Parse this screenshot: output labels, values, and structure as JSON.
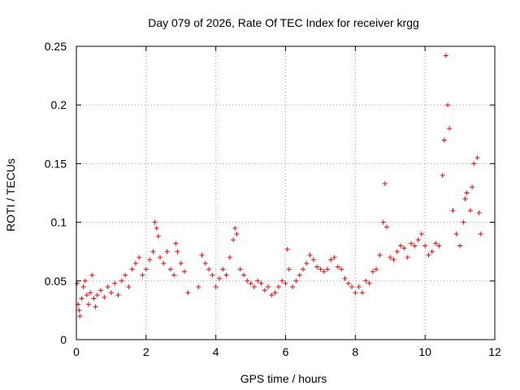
{
  "chart_data": {
    "type": "scatter",
    "title": "Day 079 of 2026, Rate Of TEC Index for receiver krgg",
    "xlabel": "GPS time / hours",
    "ylabel": "ROTI / TECUs",
    "xlim": [
      0,
      12
    ],
    "ylim": [
      0,
      0.25
    ],
    "xticks": [
      0,
      2,
      4,
      6,
      8,
      10,
      12
    ],
    "xtick_labels": [
      "0",
      "2",
      "4",
      "6",
      "8",
      "10",
      "12"
    ],
    "yticks": [
      0,
      0.05,
      0.1,
      0.15,
      0.2,
      0.25
    ],
    "ytick_labels": [
      "0",
      "0.05",
      "0.1",
      "0.15",
      "0.2",
      "0.25"
    ],
    "grid": true,
    "marker": "+",
    "color": "#ff0000",
    "series": [
      {
        "name": "ROTI",
        "x": [
          0.02,
          0.05,
          0.08,
          0.1,
          0.15,
          0.2,
          0.25,
          0.3,
          0.35,
          0.4,
          0.45,
          0.5,
          0.55,
          0.6,
          0.7,
          0.8,
          0.9,
          1.0,
          1.1,
          1.2,
          1.3,
          1.4,
          1.5,
          1.6,
          1.7,
          1.8,
          1.9,
          2.0,
          2.1,
          2.2,
          2.25,
          2.3,
          2.35,
          2.4,
          2.5,
          2.6,
          2.7,
          2.8,
          2.85,
          2.9,
          3.0,
          3.1,
          3.2,
          3.5,
          3.6,
          3.7,
          3.8,
          3.9,
          4.0,
          4.1,
          4.2,
          4.3,
          4.4,
          4.5,
          4.55,
          4.6,
          4.7,
          4.8,
          4.9,
          5.0,
          5.1,
          5.2,
          5.3,
          5.4,
          5.5,
          5.6,
          5.7,
          5.8,
          5.9,
          6.0,
          6.05,
          6.1,
          6.2,
          6.3,
          6.4,
          6.5,
          6.6,
          6.7,
          6.8,
          6.9,
          7.0,
          7.1,
          7.2,
          7.3,
          7.4,
          7.5,
          7.6,
          7.7,
          7.8,
          7.9,
          8.0,
          8.1,
          8.2,
          8.3,
          8.4,
          8.5,
          8.6,
          8.7,
          8.8,
          8.85,
          8.9,
          9.0,
          9.1,
          9.2,
          9.3,
          9.4,
          9.5,
          9.6,
          9.7,
          9.8,
          9.9,
          10.0,
          10.1,
          10.2,
          10.3,
          10.4,
          10.5,
          10.55,
          10.6,
          10.65,
          10.7,
          10.8,
          10.9,
          11.0,
          11.1,
          11.15,
          11.2,
          11.3,
          11.35,
          11.4,
          11.5,
          11.55,
          11.6
        ],
        "y": [
          0.048,
          0.03,
          0.025,
          0.02,
          0.035,
          0.045,
          0.05,
          0.038,
          0.03,
          0.04,
          0.055,
          0.035,
          0.028,
          0.038,
          0.042,
          0.036,
          0.045,
          0.04,
          0.048,
          0.038,
          0.05,
          0.055,
          0.045,
          0.06,
          0.065,
          0.07,
          0.055,
          0.06,
          0.068,
          0.075,
          0.1,
          0.095,
          0.088,
          0.07,
          0.065,
          0.075,
          0.06,
          0.055,
          0.082,
          0.075,
          0.065,
          0.058,
          0.04,
          0.045,
          0.072,
          0.065,
          0.06,
          0.055,
          0.045,
          0.052,
          0.06,
          0.055,
          0.07,
          0.085,
          0.095,
          0.09,
          0.06,
          0.055,
          0.05,
          0.048,
          0.045,
          0.05,
          0.048,
          0.042,
          0.045,
          0.038,
          0.04,
          0.045,
          0.05,
          0.048,
          0.077,
          0.06,
          0.045,
          0.05,
          0.055,
          0.06,
          0.065,
          0.072,
          0.068,
          0.062,
          0.06,
          0.058,
          0.06,
          0.068,
          0.07,
          0.062,
          0.06,
          0.052,
          0.048,
          0.045,
          0.04,
          0.045,
          0.04,
          0.05,
          0.048,
          0.058,
          0.06,
          0.072,
          0.1,
          0.133,
          0.096,
          0.07,
          0.068,
          0.075,
          0.08,
          0.078,
          0.07,
          0.082,
          0.08,
          0.085,
          0.09,
          0.08,
          0.072,
          0.075,
          0.082,
          0.08,
          0.14,
          0.17,
          0.242,
          0.2,
          0.18,
          0.11,
          0.09,
          0.08,
          0.1,
          0.12,
          0.125,
          0.11,
          0.13,
          0.15,
          0.155,
          0.108,
          0.09
        ]
      }
    ]
  }
}
